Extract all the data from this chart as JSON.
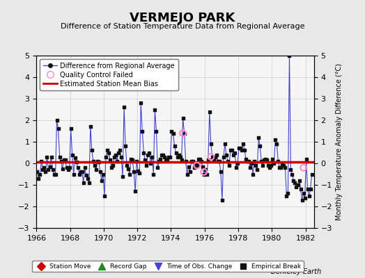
{
  "title": "VERMEJO PARK",
  "subtitle": "Difference of Station Temperature Data from Regional Average",
  "ylabel_right": "Monthly Temperature Anomaly Difference (°C)",
  "xlabel": "",
  "background_color": "#e8e8e8",
  "plot_bg_color": "#f5f5f5",
  "xlim": [
    1966.0,
    1982.5
  ],
  "ylim": [
    -3.0,
    5.0
  ],
  "yticks": [
    -3,
    -2,
    -1,
    0,
    1,
    2,
    3,
    4,
    5
  ],
  "xticks": [
    1966,
    1968,
    1970,
    1972,
    1974,
    1976,
    1978,
    1980,
    1982
  ],
  "bias_line": 0.07,
  "bias_color": "#cc0000",
  "line_color": "#4444cc",
  "marker_color": "#111111",
  "qc_color": "#ff88cc",
  "footer": "Berkeley Earth",
  "legend1_items": [
    {
      "label": "Difference from Regional Average",
      "color": "#4444cc",
      "type": "line_dot"
    },
    {
      "label": "Quality Control Failed",
      "color": "#ff88cc",
      "type": "circle"
    },
    {
      "label": "Estimated Station Mean Bias",
      "color": "#cc0000",
      "type": "line"
    }
  ],
  "legend2_items": [
    {
      "label": "Station Move",
      "color": "#cc0000",
      "type": "diamond"
    },
    {
      "label": "Record Gap",
      "color": "#228B22",
      "type": "triangle_up"
    },
    {
      "label": "Time of Obs. Change",
      "color": "#4444cc",
      "type": "triangle_down"
    },
    {
      "label": "Empirical Break",
      "color": "#111111",
      "type": "square"
    }
  ],
  "data": [
    [
      1966.042,
      -0.4
    ],
    [
      1966.125,
      -0.7
    ],
    [
      1966.208,
      -0.5
    ],
    [
      1966.292,
      0.1
    ],
    [
      1966.375,
      -0.3
    ],
    [
      1966.458,
      -0.2
    ],
    [
      1966.542,
      -0.4
    ],
    [
      1966.625,
      0.3
    ],
    [
      1966.708,
      -0.3
    ],
    [
      1966.792,
      -0.15
    ],
    [
      1966.875,
      0.3
    ],
    [
      1966.958,
      -0.3
    ],
    [
      1967.042,
      -0.5
    ],
    [
      1967.125,
      -0.5
    ],
    [
      1967.208,
      2.0
    ],
    [
      1967.292,
      1.6
    ],
    [
      1967.375,
      0.3
    ],
    [
      1967.458,
      0.1
    ],
    [
      1967.542,
      -0.25
    ],
    [
      1967.625,
      0.15
    ],
    [
      1967.708,
      0.15
    ],
    [
      1967.792,
      -0.2
    ],
    [
      1967.875,
      -0.3
    ],
    [
      1967.958,
      -0.2
    ],
    [
      1968.042,
      1.6
    ],
    [
      1968.125,
      0.4
    ],
    [
      1968.208,
      -0.5
    ],
    [
      1968.292,
      0.25
    ],
    [
      1968.375,
      0.05
    ],
    [
      1968.458,
      -0.2
    ],
    [
      1968.542,
      -0.5
    ],
    [
      1968.625,
      -0.4
    ],
    [
      1968.708,
      -0.4
    ],
    [
      1968.792,
      -0.9
    ],
    [
      1968.875,
      -0.2
    ],
    [
      1968.958,
      -0.55
    ],
    [
      1969.042,
      -0.7
    ],
    [
      1969.125,
      -0.9
    ],
    [
      1969.208,
      1.7
    ],
    [
      1969.292,
      0.6
    ],
    [
      1969.375,
      0.1
    ],
    [
      1969.458,
      -0.1
    ],
    [
      1969.542,
      -0.3
    ],
    [
      1969.625,
      0.1
    ],
    [
      1969.708,
      0.05
    ],
    [
      1969.792,
      -0.4
    ],
    [
      1969.875,
      -0.8
    ],
    [
      1969.958,
      -0.5
    ],
    [
      1970.042,
      -1.5
    ],
    [
      1970.125,
      0.3
    ],
    [
      1970.208,
      0.6
    ],
    [
      1970.292,
      0.5
    ],
    [
      1970.375,
      0.15
    ],
    [
      1970.458,
      -0.2
    ],
    [
      1970.542,
      -0.1
    ],
    [
      1970.625,
      0.3
    ],
    [
      1970.708,
      0.4
    ],
    [
      1970.792,
      0.1
    ],
    [
      1970.875,
      0.5
    ],
    [
      1970.958,
      0.6
    ],
    [
      1971.042,
      0.3
    ],
    [
      1971.125,
      -0.6
    ],
    [
      1971.208,
      2.6
    ],
    [
      1971.292,
      0.8
    ],
    [
      1971.375,
      -0.1
    ],
    [
      1971.458,
      -0.25
    ],
    [
      1971.542,
      -0.5
    ],
    [
      1971.625,
      0.2
    ],
    [
      1971.708,
      0.15
    ],
    [
      1971.792,
      -0.4
    ],
    [
      1971.875,
      -1.3
    ],
    [
      1971.958,
      0.1
    ],
    [
      1972.042,
      -0.35
    ],
    [
      1972.125,
      -0.45
    ],
    [
      1972.208,
      2.8
    ],
    [
      1972.292,
      1.5
    ],
    [
      1972.375,
      0.5
    ],
    [
      1972.458,
      0.15
    ],
    [
      1972.542,
      -0.1
    ],
    [
      1972.625,
      0.4
    ],
    [
      1972.708,
      0.5
    ],
    [
      1972.792,
      0.0
    ],
    [
      1972.875,
      0.3
    ],
    [
      1972.958,
      -0.5
    ],
    [
      1973.042,
      2.5
    ],
    [
      1973.125,
      1.5
    ],
    [
      1973.208,
      -0.2
    ],
    [
      1973.292,
      0.1
    ],
    [
      1973.375,
      0.2
    ],
    [
      1973.458,
      0.4
    ],
    [
      1973.542,
      0.4
    ],
    [
      1973.625,
      0.3
    ],
    [
      1973.708,
      0.2
    ],
    [
      1973.792,
      0.2
    ],
    [
      1973.875,
      0.3
    ],
    [
      1973.958,
      0.3
    ],
    [
      1974.042,
      1.5
    ],
    [
      1974.125,
      1.4
    ],
    [
      1974.208,
      0.8
    ],
    [
      1974.292,
      0.5
    ],
    [
      1974.375,
      0.3
    ],
    [
      1974.458,
      0.4
    ],
    [
      1974.542,
      0.3
    ],
    [
      1974.625,
      0.15
    ],
    [
      1974.708,
      2.1
    ],
    [
      1974.792,
      1.4
    ],
    [
      1974.875,
      0.1
    ],
    [
      1974.958,
      -0.5
    ],
    [
      1975.042,
      -0.15
    ],
    [
      1975.125,
      -0.4
    ],
    [
      1975.208,
      0.1
    ],
    [
      1975.292,
      0.1
    ],
    [
      1975.375,
      -0.2
    ],
    [
      1975.458,
      0.0
    ],
    [
      1975.542,
      -0.1
    ],
    [
      1975.625,
      0.2
    ],
    [
      1975.708,
      0.2
    ],
    [
      1975.792,
      0.1
    ],
    [
      1975.875,
      -0.15
    ],
    [
      1975.958,
      -0.5
    ],
    [
      1976.042,
      -0.3
    ],
    [
      1976.125,
      -0.5
    ],
    [
      1976.208,
      0.15
    ],
    [
      1976.292,
      2.4
    ],
    [
      1976.375,
      0.9
    ],
    [
      1976.458,
      0.3
    ],
    [
      1976.542,
      0.15
    ],
    [
      1976.625,
      0.3
    ],
    [
      1976.708,
      0.4
    ],
    [
      1976.792,
      0.1
    ],
    [
      1976.875,
      0.1
    ],
    [
      1976.958,
      -0.4
    ],
    [
      1977.042,
      -1.7
    ],
    [
      1977.125,
      0.3
    ],
    [
      1977.208,
      0.9
    ],
    [
      1977.292,
      0.4
    ],
    [
      1977.375,
      0.1
    ],
    [
      1977.458,
      -0.1
    ],
    [
      1977.542,
      0.6
    ],
    [
      1977.625,
      0.6
    ],
    [
      1977.708,
      0.4
    ],
    [
      1977.792,
      0.5
    ],
    [
      1977.875,
      -0.2
    ],
    [
      1977.958,
      0.0
    ],
    [
      1978.042,
      0.7
    ],
    [
      1978.125,
      0.7
    ],
    [
      1978.208,
      0.6
    ],
    [
      1978.292,
      0.9
    ],
    [
      1978.375,
      0.6
    ],
    [
      1978.458,
      0.2
    ],
    [
      1978.542,
      0.1
    ],
    [
      1978.625,
      0.1
    ],
    [
      1978.708,
      -0.2
    ],
    [
      1978.792,
      0.0
    ],
    [
      1978.875,
      -0.5
    ],
    [
      1978.958,
      0.1
    ],
    [
      1979.042,
      -0.1
    ],
    [
      1979.125,
      -0.3
    ],
    [
      1979.208,
      1.2
    ],
    [
      1979.292,
      0.8
    ],
    [
      1979.375,
      0.1
    ],
    [
      1979.458,
      -0.1
    ],
    [
      1979.542,
      0.15
    ],
    [
      1979.625,
      0.2
    ],
    [
      1979.708,
      0.15
    ],
    [
      1979.792,
      -0.1
    ],
    [
      1979.875,
      -0.2
    ],
    [
      1979.958,
      -0.1
    ],
    [
      1980.042,
      0.2
    ],
    [
      1980.125,
      0.0
    ],
    [
      1980.208,
      1.1
    ],
    [
      1980.292,
      0.9
    ],
    [
      1980.375,
      0.1
    ],
    [
      1980.458,
      -0.2
    ],
    [
      1980.542,
      -0.2
    ],
    [
      1980.625,
      -0.05
    ],
    [
      1980.708,
      -0.1
    ],
    [
      1980.792,
      -0.2
    ],
    [
      1980.875,
      -1.5
    ],
    [
      1980.958,
      -1.4
    ],
    [
      1981.042,
      5.0
    ],
    [
      1981.125,
      -0.3
    ],
    [
      1981.208,
      -0.5
    ],
    [
      1981.292,
      -0.8
    ],
    [
      1981.375,
      -0.9
    ],
    [
      1981.458,
      -1.1
    ],
    [
      1981.542,
      -1.0
    ],
    [
      1981.625,
      -0.8
    ],
    [
      1981.708,
      -1.2
    ],
    [
      1981.792,
      -1.7
    ],
    [
      1981.875,
      -1.4
    ],
    [
      1981.958,
      -1.6
    ],
    [
      1982.042,
      0.2
    ],
    [
      1982.125,
      -1.2
    ],
    [
      1982.208,
      -1.5
    ],
    [
      1982.292,
      -1.2
    ],
    [
      1982.375,
      -0.5
    ]
  ],
  "qc_points": [
    [
      1974.708,
      1.4
    ],
    [
      1975.542,
      -0.1
    ],
    [
      1975.958,
      -0.4
    ],
    [
      1976.375,
      0.3
    ],
    [
      1981.875,
      -0.2
    ]
  ]
}
